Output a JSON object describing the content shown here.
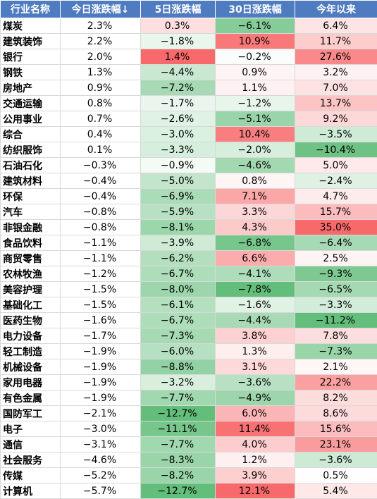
{
  "headers": [
    "行业名称",
    "今日涨跌幅↓",
    "5日涨跌幅",
    "30日涨跌幅",
    "今年以来"
  ],
  "rows": [
    {
      "name": "煤炭",
      "d1": 2.3,
      "d5": 0.3,
      "d30": -6.1,
      "ytd": 6.4
    },
    {
      "name": "建筑装饰",
      "d1": 2.2,
      "d5": -1.8,
      "d30": 10.9,
      "ytd": 11.7
    },
    {
      "name": "银行",
      "d1": 2.0,
      "d5": 1.4,
      "d30": -0.2,
      "ytd": 27.6
    },
    {
      "name": "钢铁",
      "d1": 1.3,
      "d5": -4.4,
      "d30": 0.9,
      "ytd": 3.2
    },
    {
      "name": "房地产",
      "d1": 0.9,
      "d5": -7.2,
      "d30": 1.1,
      "ytd": 7.0
    },
    {
      "name": "交通运输",
      "d1": 0.8,
      "d5": -1.7,
      "d30": -1.2,
      "ytd": 13.7
    },
    {
      "name": "公用事业",
      "d1": 0.7,
      "d5": -2.6,
      "d30": -5.1,
      "ytd": 9.2
    },
    {
      "name": "综合",
      "d1": 0.4,
      "d5": -3.0,
      "d30": 10.4,
      "ytd": -3.5
    },
    {
      "name": "纺织服饰",
      "d1": 0.1,
      "d5": -3.3,
      "d30": -2.0,
      "ytd": -10.4
    },
    {
      "name": "石油石化",
      "d1": -0.3,
      "d5": -0.9,
      "d30": -4.6,
      "ytd": 5.0
    },
    {
      "name": "建筑材料",
      "d1": -0.4,
      "d5": -5.0,
      "d30": 0.8,
      "ytd": -2.4
    },
    {
      "name": "环保",
      "d1": -0.4,
      "d5": -6.9,
      "d30": 7.1,
      "ytd": 4.7
    },
    {
      "name": "汽车",
      "d1": -0.8,
      "d5": -5.9,
      "d30": 3.3,
      "ytd": 15.7
    },
    {
      "name": "非银金融",
      "d1": -0.8,
      "d5": -8.1,
      "d30": 4.3,
      "ytd": 35.0
    },
    {
      "name": "食品饮料",
      "d1": -1.1,
      "d5": -3.9,
      "d30": -6.8,
      "ytd": -6.4
    },
    {
      "name": "商贸零售",
      "d1": -1.1,
      "d5": -6.2,
      "d30": 6.6,
      "ytd": 2.5
    },
    {
      "name": "农林牧渔",
      "d1": -1.2,
      "d5": -6.7,
      "d30": -4.1,
      "ytd": -9.3
    },
    {
      "name": "美容护理",
      "d1": -1.5,
      "d5": -8.0,
      "d30": -7.8,
      "ytd": -6.5
    },
    {
      "name": "基础化工",
      "d1": -1.5,
      "d5": -6.1,
      "d30": -1.6,
      "ytd": -3.3
    },
    {
      "name": "医药生物",
      "d1": -1.6,
      "d5": -6.7,
      "d30": -4.4,
      "ytd": -11.2
    },
    {
      "name": "电力设备",
      "d1": -1.7,
      "d5": -7.3,
      "d30": 3.8,
      "ytd": 7.8
    },
    {
      "name": "轻工制造",
      "d1": -1.9,
      "d5": -6.0,
      "d30": 1.3,
      "ytd": -7.3
    },
    {
      "name": "机械设备",
      "d1": -1.9,
      "d5": -8.8,
      "d30": 3.1,
      "ytd": 2.1
    },
    {
      "name": "家用电器",
      "d1": -1.9,
      "d5": -3.2,
      "d30": -3.6,
      "ytd": 22.2
    },
    {
      "name": "有色金属",
      "d1": -1.9,
      "d5": -7.7,
      "d30": -4.9,
      "ytd": 8.2
    },
    {
      "name": "国防军工",
      "d1": -2.1,
      "d5": -12.7,
      "d30": 6.0,
      "ytd": 8.6
    },
    {
      "name": "电子",
      "d1": -3.0,
      "d5": -11.1,
      "d30": 11.4,
      "ytd": 15.6
    },
    {
      "name": "通信",
      "d1": -3.1,
      "d5": -7.7,
      "d30": 4.0,
      "ytd": 23.1
    },
    {
      "name": "社会服务",
      "d1": -4.6,
      "d5": -8.3,
      "d30": 1.2,
      "ytd": -3.6
    },
    {
      "name": "传媒",
      "d1": -5.2,
      "d5": -8.2,
      "d30": 3.9,
      "ytd": 0.5
    },
    {
      "name": "计算机",
      "d1": -5.7,
      "d5": -12.7,
      "d30": 12.1,
      "ytd": 5.4
    }
  ],
  "colors": {
    "header_bg": "#4f7bc0",
    "header_text": "#ffffff",
    "positive_max": "#f8696b",
    "negative_max": "#63be7b",
    "neutral": "#ffffff",
    "grid": "#d9d9d9"
  }
}
